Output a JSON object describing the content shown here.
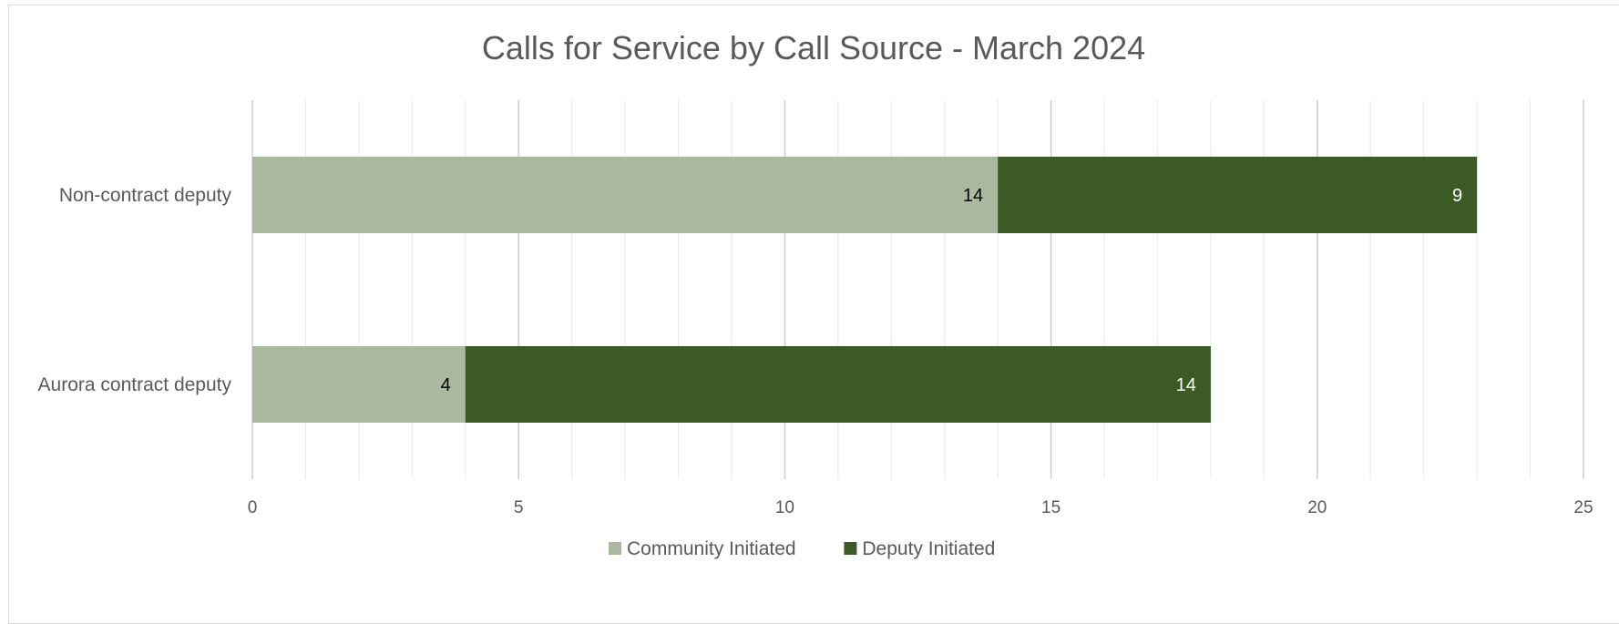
{
  "chart_data": {
    "type": "bar",
    "orientation": "horizontal",
    "stacked": true,
    "title": "Calls for Service by Call Source - March 2024",
    "categories": [
      "Non-contract deputy",
      "Aurora contract deputy"
    ],
    "series": [
      {
        "name": "Community Initiated",
        "values": [
          14,
          4
        ],
        "color": "#abb9a0",
        "label_color": "#000000"
      },
      {
        "name": "Deputy Initiated",
        "values": [
          9,
          14
        ],
        "color": "#3b5a26",
        "label_color": "#ffffff"
      }
    ],
    "xlim": [
      0,
      25
    ],
    "x_ticks": [
      0,
      5,
      10,
      15,
      20,
      25
    ],
    "x_minor_step": 1,
    "grid": true,
    "legend_position": "bottom",
    "data_labels": true
  }
}
